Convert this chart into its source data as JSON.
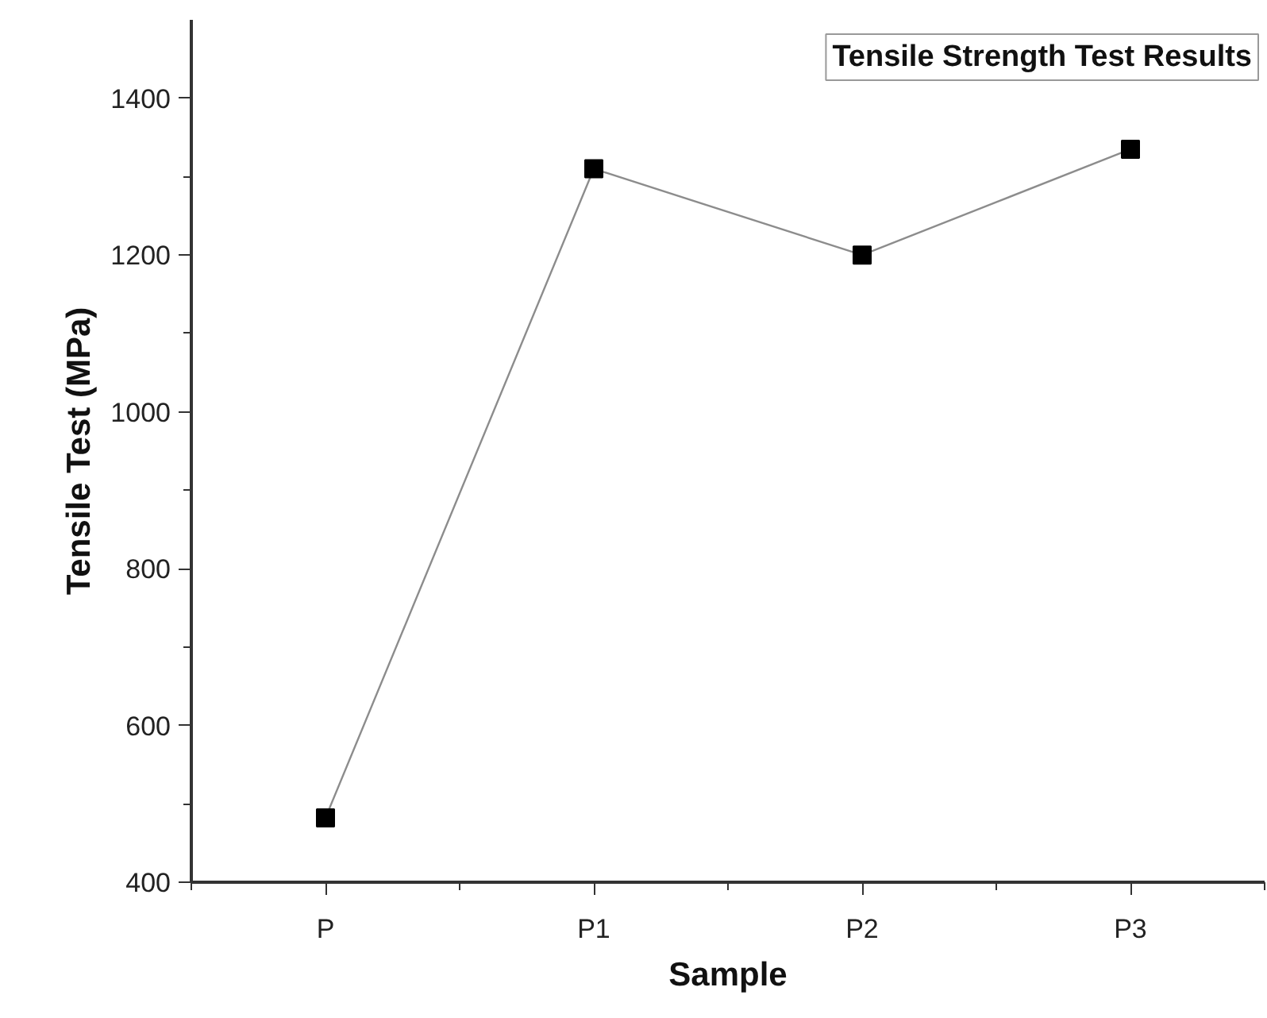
{
  "chart_data": {
    "type": "line",
    "title": "Tensile Strength Test Results",
    "xlabel": "Sample",
    "ylabel": "Tensile Test (MPa)",
    "categories": [
      "P",
      "P1",
      "P2",
      "P3"
    ],
    "series": [
      {
        "color": "#000000",
        "values": [
          482,
          1310,
          1200,
          1335
        ]
      }
    ],
    "ylim": [
      400,
      1500
    ],
    "yticks": [
      400,
      {
        "value": 500,
        "label": null
      },
      600,
      {
        "value": 700,
        "label": null
      },
      800,
      {
        "value": 900,
        "label": null
      },
      1000,
      {
        "value": 1100,
        "label": null
      },
      1200,
      {
        "value": 1300,
        "label": null
      },
      1400
    ],
    "marker": "square",
    "line_style": "solid"
  }
}
